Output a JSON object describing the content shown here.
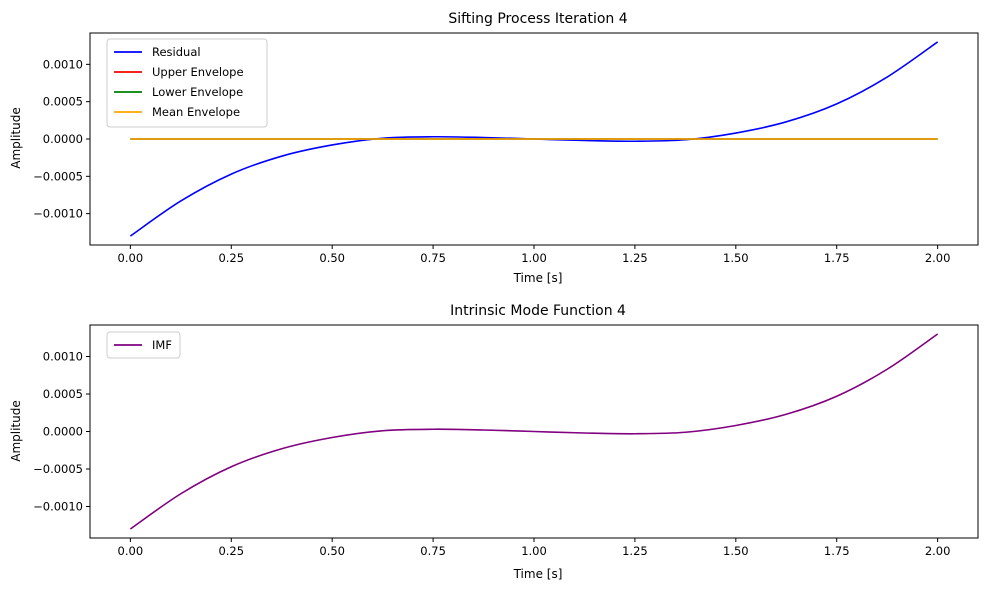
{
  "chart_data": [
    {
      "type": "line",
      "title": "Sifting Process Iteration 4",
      "xlabel": "Time [s]",
      "ylabel": "Amplitude",
      "xlim": [
        -0.1,
        2.1
      ],
      "ylim": [
        -0.00142,
        0.00142
      ],
      "xticks": [
        "0.00",
        "0.25",
        "0.50",
        "0.75",
        "1.00",
        "1.25",
        "1.50",
        "1.75",
        "2.00"
      ],
      "yticks": [
        "0.0010",
        "0.0005",
        "0.0000",
        "−0.0005",
        "−0.0010"
      ],
      "ytick_values": [
        0.001,
        0.0005,
        0.0,
        -0.0005,
        -0.001
      ],
      "grid": false,
      "legend_position": "upper-left",
      "x": [
        0.0,
        0.125,
        0.25,
        0.375,
        0.5,
        0.625,
        0.75,
        0.875,
        1.0,
        1.125,
        1.25,
        1.375,
        1.5,
        1.625,
        1.75,
        1.875,
        2.0
      ],
      "series": [
        {
          "name": "Residual",
          "color": "#0000ff",
          "values": [
            -0.0013,
            -0.00083,
            -0.00047,
            -0.00023,
            -8e-05,
            1e-05,
            3e-05,
            2e-05,
            0.0,
            -2e-05,
            -3e-05,
            -1e-05,
            8e-05,
            0.00023,
            0.00047,
            0.00083,
            0.0013
          ]
        },
        {
          "name": "Upper Envelope",
          "color": "#ff0000",
          "values": [
            0,
            0,
            0,
            0,
            0,
            0,
            0,
            0,
            0,
            0,
            0,
            0,
            0,
            0,
            0,
            0,
            0
          ]
        },
        {
          "name": "Lower Envelope",
          "color": "#008000",
          "values": [
            0,
            0,
            0,
            0,
            0,
            0,
            0,
            0,
            0,
            0,
            0,
            0,
            0,
            0,
            0,
            0,
            0
          ]
        },
        {
          "name": "Mean Envelope",
          "color": "#ffa500",
          "values": [
            0,
            0,
            0,
            0,
            0,
            0,
            0,
            0,
            0,
            0,
            0,
            0,
            0,
            0,
            0,
            0,
            0
          ]
        }
      ]
    },
    {
      "type": "line",
      "title": "Intrinsic Mode Function 4",
      "xlabel": "Time [s]",
      "ylabel": "Amplitude",
      "xlim": [
        -0.1,
        2.1
      ],
      "ylim": [
        -0.00142,
        0.00142
      ],
      "xticks": [
        "0.00",
        "0.25",
        "0.50",
        "0.75",
        "1.00",
        "1.25",
        "1.50",
        "1.75",
        "2.00"
      ],
      "yticks": [
        "0.0010",
        "0.0005",
        "0.0000",
        "−0.0005",
        "−0.0010"
      ],
      "ytick_values": [
        0.001,
        0.0005,
        0.0,
        -0.0005,
        -0.001
      ],
      "grid": false,
      "legend_position": "upper-left",
      "x": [
        0.0,
        0.125,
        0.25,
        0.375,
        0.5,
        0.625,
        0.75,
        0.875,
        1.0,
        1.125,
        1.25,
        1.375,
        1.5,
        1.625,
        1.75,
        1.875,
        2.0
      ],
      "series": [
        {
          "name": "IMF",
          "color": "#800080",
          "values": [
            -0.0013,
            -0.00083,
            -0.00047,
            -0.00023,
            -8e-05,
            1e-05,
            3e-05,
            2e-05,
            0.0,
            -2e-05,
            -3e-05,
            -1e-05,
            8e-05,
            0.00023,
            0.00047,
            0.00083,
            0.0013
          ]
        }
      ]
    }
  ]
}
